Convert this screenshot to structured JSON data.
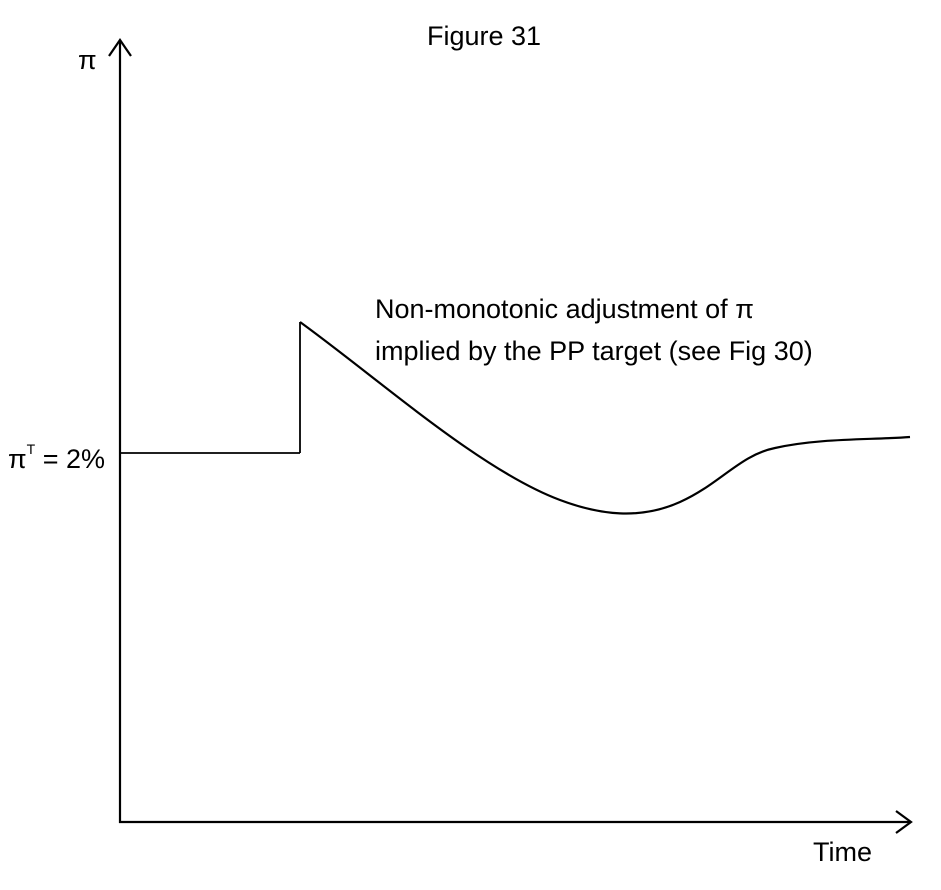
{
  "figure": {
    "title": "Figure 31",
    "y_axis_label": "π",
    "x_axis_label": "Time",
    "target_label": {
      "base": "π",
      "superscript": "T",
      "value_text": " = 2%"
    },
    "annotation": {
      "line1": "Non-monotonic adjustment of π",
      "line2": "implied by the PP target (see Fig 30)"
    },
    "colors": {
      "line": "#000000",
      "background": "#ffffff"
    }
  }
}
